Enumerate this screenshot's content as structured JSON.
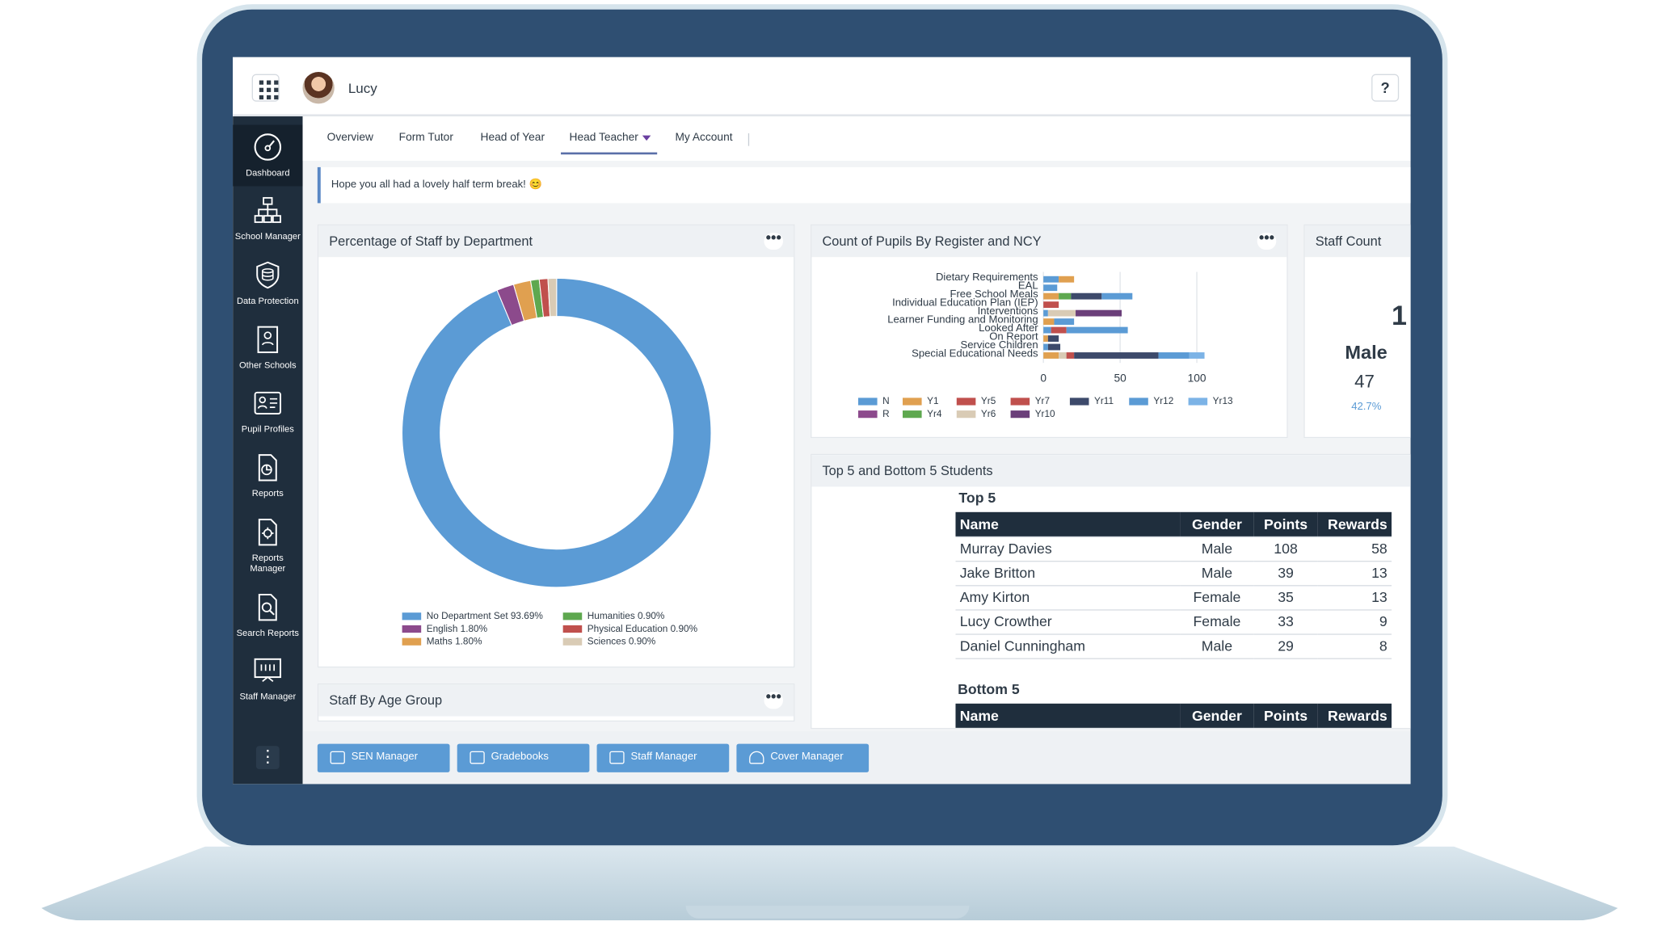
{
  "header": {
    "user_name": "Lucy",
    "help_icon_text": "?"
  },
  "sidebar": {
    "items": [
      {
        "label": "Dashboard",
        "icon": "gauge-icon"
      },
      {
        "label": "School Manager",
        "icon": "org-chart-icon"
      },
      {
        "label": "Data Protection",
        "icon": "shield-icon"
      },
      {
        "label": "Other Schools",
        "icon": "school-icon"
      },
      {
        "label": "Pupil Profiles",
        "icon": "profile-card-icon"
      },
      {
        "label": "Reports",
        "icon": "report-icon"
      },
      {
        "label": "Reports",
        "label2": "Manager",
        "icon": "report-gear-icon"
      },
      {
        "label": "Search Reports",
        "icon": "search-report-icon"
      },
      {
        "label": "Staff Manager",
        "icon": "staff-board-icon"
      }
    ],
    "more_label": "⋮"
  },
  "tabs": {
    "overview": "Overview",
    "form_tutor": "Form Tutor",
    "head_of_year": "Head of Year",
    "head_teacher": "Head Teacher",
    "my_account": "My Account"
  },
  "notice": {
    "text": "Hope you all had a lovely half term break! 😊"
  },
  "staff_by_department": {
    "title": "Percentage of Staff by Department",
    "menu": "•••"
  },
  "pupils_by_register": {
    "title": "Count of Pupils By Register and NCY",
    "menu": "•••"
  },
  "staff_count": {
    "title": "Staff Count",
    "total": "1",
    "gender": "Male",
    "count": "47",
    "percent": "42.7%"
  },
  "staff_by_age": {
    "title": "Staff By Age Group",
    "menu": "•••"
  },
  "top_bottom": {
    "title": "Top 5 and Bottom 5 Students",
    "top_label": "Top 5",
    "bottom_label": "Bottom 5",
    "columns": [
      "Name",
      "Gender",
      "Points",
      "Rewards"
    ],
    "top_rows": [
      [
        "Murray Davies",
        "Male",
        "108",
        "58"
      ],
      [
        "Jake Britton",
        "Male",
        "39",
        "13"
      ],
      [
        "Amy Kirton",
        "Female",
        "35",
        "13"
      ],
      [
        "Lucy Crowther",
        "Female",
        "33",
        "9"
      ],
      [
        "Daniel Cunningham",
        "Male",
        "29",
        "8"
      ]
    ]
  },
  "quick_links": {
    "sen": "SEN Manager",
    "gradebooks": "Gradebooks",
    "staff": "Staff Manager",
    "cover": "Cover Manager"
  },
  "chart_data": [
    {
      "type": "pie",
      "title": "Percentage of Staff by Department",
      "categories": [
        "No Department Set",
        "English",
        "Maths",
        "Humanities",
        "Physical Education",
        "Sciences"
      ],
      "values": [
        93.69,
        1.8,
        1.8,
        0.9,
        0.9,
        0.9
      ],
      "legend_labels": [
        "No Department Set 93.69%",
        "English 1.80%",
        "Maths 1.80%",
        "Humanities 0.90%",
        "Physical Education 0.90%",
        "Sciences 0.90%"
      ],
      "colors": [
        "#5b9bd5",
        "#8c4a8c",
        "#e0a050",
        "#5ea84f",
        "#c0504d",
        "#d9cbb5"
      ],
      "legend": "bottom",
      "donut": true
    },
    {
      "type": "bar",
      "orientation": "horizontal",
      "stacked": true,
      "title": "Count of Pupils By Register and NCY",
      "categories": [
        "Dietary Requirements",
        "EAL",
        "Free School Meals",
        "Individual Education Plan (IEP)",
        "Interventions",
        "Learner Funding and Monitoring",
        "Looked After",
        "On Report",
        "Service Children",
        "Special Educational Needs"
      ],
      "series": [
        {
          "name": "N",
          "color": "#5b9bd5",
          "values": [
            10,
            9,
            0,
            0,
            3,
            0,
            5,
            0,
            3,
            0
          ]
        },
        {
          "name": "R",
          "color": "#8c4a8c",
          "values": [
            0,
            0,
            0,
            0,
            0,
            0,
            0,
            0,
            0,
            0
          ]
        },
        {
          "name": "Y1",
          "color": "#e0a050",
          "values": [
            10,
            0,
            10,
            0,
            0,
            7,
            0,
            3,
            0,
            10
          ]
        },
        {
          "name": "Yr4",
          "color": "#5ea84f",
          "values": [
            0,
            0,
            8,
            0,
            0,
            0,
            0,
            0,
            0,
            0
          ]
        },
        {
          "name": "Yr5",
          "color": "#c0504d",
          "values": [
            0,
            0,
            0,
            10,
            0,
            0,
            10,
            0,
            0,
            0
          ]
        },
        {
          "name": "Yr6",
          "color": "#d9cbb5",
          "values": [
            0,
            0,
            0,
            0,
            18,
            0,
            0,
            0,
            0,
            5
          ]
        },
        {
          "name": "Yr7",
          "color": "#c0504d",
          "values": [
            0,
            0,
            0,
            0,
            0,
            0,
            0,
            0,
            0,
            5
          ]
        },
        {
          "name": "Yr10",
          "color": "#6b3f7a",
          "values": [
            0,
            0,
            0,
            0,
            30,
            0,
            0,
            0,
            0,
            0
          ]
        },
        {
          "name": "Yr11",
          "color": "#3d4a6b",
          "values": [
            0,
            0,
            20,
            0,
            0,
            0,
            0,
            7,
            8,
            55
          ]
        },
        {
          "name": "Yr12",
          "color": "#5b9bd5",
          "values": [
            0,
            0,
            20,
            0,
            0,
            13,
            40,
            0,
            0,
            20
          ]
        },
        {
          "name": "Yr13",
          "color": "#7cb3e6",
          "values": [
            0,
            0,
            0,
            0,
            0,
            0,
            0,
            0,
            0,
            10
          ]
        }
      ],
      "xlim": [
        0,
        120
      ],
      "ticks": [
        "0",
        "50",
        "100"
      ],
      "grid": true,
      "legend": "bottom"
    }
  ]
}
